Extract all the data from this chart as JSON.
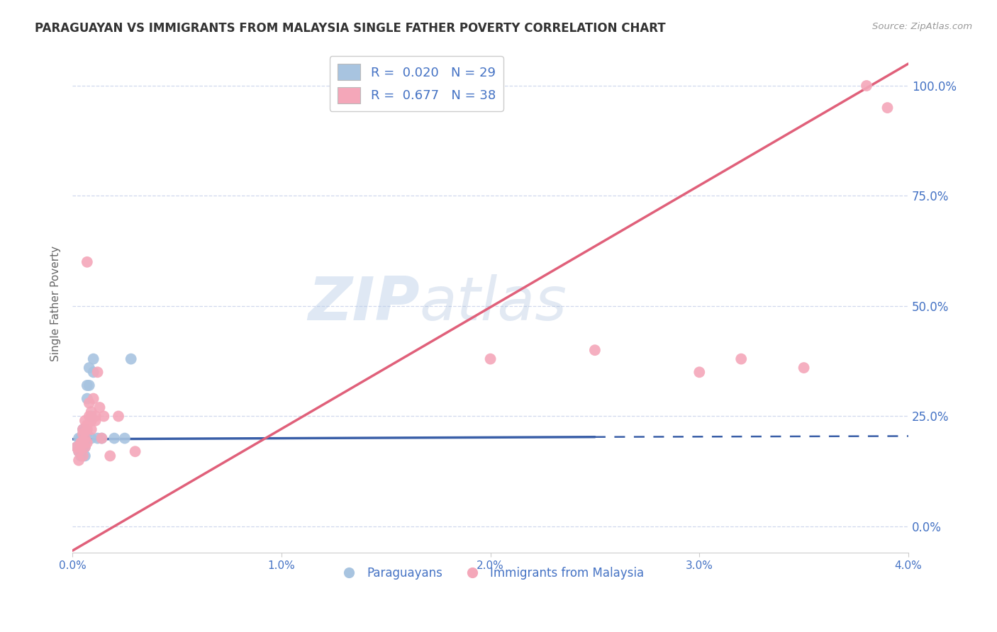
{
  "title": "PARAGUAYAN VS IMMIGRANTS FROM MALAYSIA SINGLE FATHER POVERTY CORRELATION CHART",
  "source": "Source: ZipAtlas.com",
  "ylabel": "Single Father Poverty",
  "xmin": 0.0,
  "xmax": 0.04,
  "ymin": -0.06,
  "ymax": 1.07,
  "watermark_zip": "ZIP",
  "watermark_atlas": "atlas",
  "blue_color": "#a8c4e0",
  "pink_color": "#f4a7b9",
  "blue_line_color": "#3a5fa8",
  "pink_line_color": "#e0607a",
  "text_color": "#4472c4",
  "grid_color": "#d0d8ee",
  "title_color": "#333333",
  "paraguayan_x": [
    0.0002,
    0.0003,
    0.0003,
    0.0004,
    0.0004,
    0.0004,
    0.0005,
    0.0005,
    0.0005,
    0.0005,
    0.0006,
    0.0006,
    0.0006,
    0.0006,
    0.0006,
    0.0007,
    0.0007,
    0.0007,
    0.0008,
    0.0008,
    0.0009,
    0.0009,
    0.001,
    0.001,
    0.0012,
    0.0014,
    0.002,
    0.0025,
    0.0028
  ],
  "paraguayan_y": [
    0.18,
    0.2,
    0.17,
    0.19,
    0.2,
    0.16,
    0.19,
    0.21,
    0.18,
    0.22,
    0.19,
    0.2,
    0.18,
    0.22,
    0.16,
    0.21,
    0.32,
    0.29,
    0.36,
    0.32,
    0.25,
    0.2,
    0.38,
    0.35,
    0.2,
    0.2,
    0.2,
    0.2,
    0.38
  ],
  "malaysia_x": [
    0.0002,
    0.0003,
    0.0003,
    0.0004,
    0.0004,
    0.0005,
    0.0005,
    0.0005,
    0.0005,
    0.0006,
    0.0006,
    0.0006,
    0.0007,
    0.0007,
    0.0007,
    0.0007,
    0.0008,
    0.0008,
    0.0009,
    0.0009,
    0.0009,
    0.001,
    0.0011,
    0.0011,
    0.0012,
    0.0013,
    0.0014,
    0.0015,
    0.0018,
    0.0022,
    0.003,
    0.02,
    0.025,
    0.03,
    0.032,
    0.035,
    0.038,
    0.039
  ],
  "malaysia_y": [
    0.18,
    0.17,
    0.15,
    0.18,
    0.19,
    0.16,
    0.19,
    0.22,
    0.21,
    0.18,
    0.2,
    0.24,
    0.19,
    0.22,
    0.6,
    0.23,
    0.25,
    0.28,
    0.24,
    0.22,
    0.26,
    0.29,
    0.24,
    0.25,
    0.35,
    0.27,
    0.2,
    0.25,
    0.16,
    0.25,
    0.17,
    0.38,
    0.4,
    0.35,
    0.38,
    0.36,
    1.0,
    0.95
  ],
  "blue_line_x0": 0.0,
  "blue_line_x1_solid": 0.025,
  "blue_line_x2_dash": 0.04,
  "blue_line_y0": 0.198,
  "blue_line_y1_solid": 0.203,
  "blue_line_y2_dash": 0.205,
  "pink_line_x0": 0.0,
  "pink_line_x1": 0.04,
  "pink_line_y0": -0.055,
  "pink_line_y1": 1.05
}
